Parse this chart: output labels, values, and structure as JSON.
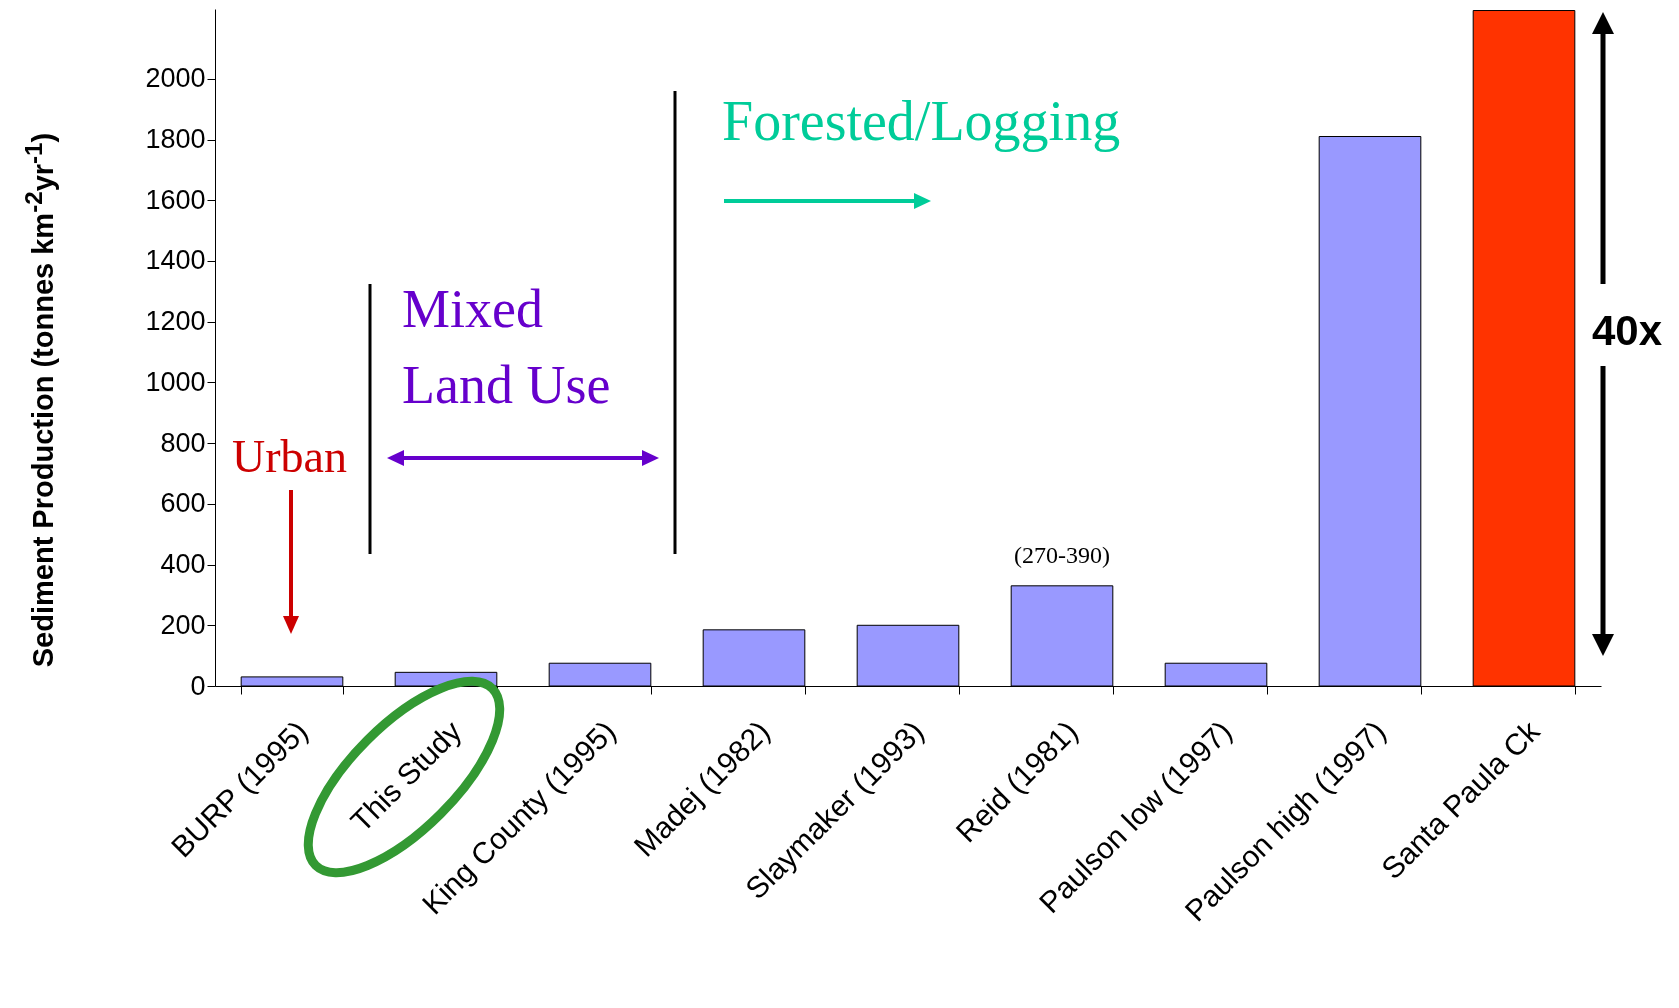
{
  "chart_data": {
    "type": "bar",
    "ylabel": "Sediment Production (tonnes km$^{-2}$yr$^{-1}$)",
    "categories": [
      "BURP (1995)",
      "This Study",
      "King County (1995)",
      "Madej (1982)",
      "Slaymaker (1993)",
      "Reid (1981)",
      "Paulson low (1997)",
      "Paulson high (1997)",
      "Santa Paula Ck"
    ],
    "values": [
      30,
      45,
      75,
      185,
      200,
      330,
      75,
      1810,
      2225
    ],
    "colors": [
      "#9999ff",
      "#9999ff",
      "#9999ff",
      "#9999ff",
      "#9999ff",
      "#9999ff",
      "#9999ff",
      "#9999ff",
      "#ff3300"
    ],
    "ylim": [
      0,
      2230
    ],
    "yticks": [
      0,
      200,
      400,
      600,
      800,
      1000,
      1200,
      1400,
      1600,
      1800,
      2000
    ],
    "grid": false,
    "annotations": [
      "Urban",
      "Mixed\nLand Use",
      "Forested/Logging",
      {
        "text": "(270-390)",
        "x": "Reid (1981)",
        "y": 330
      },
      "40x"
    ]
  }
}
